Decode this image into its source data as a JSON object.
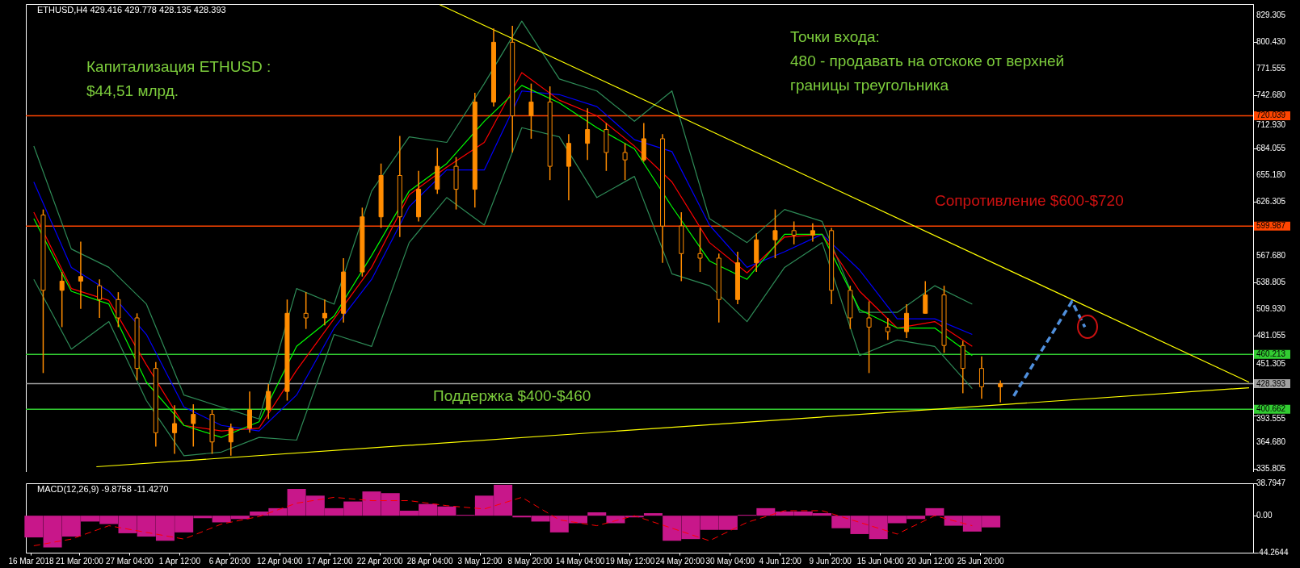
{
  "chart_data": [
    {
      "type": "candlestick",
      "title": "ETHUSD,H4  429.416 429.778 428.135 428.393",
      "color": "#ff8c00",
      "x": [
        "2018-03-18",
        "2018-03-20",
        "2018-03-22",
        "2018-03-24",
        "2018-03-26",
        "2018-03-28",
        "2018-03-30",
        "2018-04-01",
        "2018-04-03",
        "2018-04-05",
        "2018-04-07",
        "2018-04-09",
        "2018-04-11",
        "2018-04-13",
        "2018-04-15",
        "2018-04-17",
        "2018-04-19",
        "2018-04-21",
        "2018-04-23",
        "2018-04-25",
        "2018-04-27",
        "2018-04-29",
        "2018-05-01",
        "2018-05-03",
        "2018-05-05",
        "2018-05-07",
        "2018-05-09",
        "2018-05-11",
        "2018-05-13",
        "2018-05-15",
        "2018-05-17",
        "2018-05-19",
        "2018-05-21",
        "2018-05-23",
        "2018-05-25",
        "2018-05-27",
        "2018-05-29",
        "2018-05-31",
        "2018-06-02",
        "2018-06-04",
        "2018-06-06",
        "2018-06-08",
        "2018-06-10",
        "2018-06-12",
        "2018-06-14",
        "2018-06-16",
        "2018-06-18",
        "2018-06-20",
        "2018-06-22",
        "2018-06-24",
        "2018-06-26",
        "2018-06-28"
      ],
      "ohlc": [
        [
          612,
          618,
          440,
          530
        ],
        [
          530,
          550,
          490,
          540
        ],
        [
          540,
          583,
          510,
          545
        ],
        [
          535,
          542,
          500,
          520
        ],
        [
          520,
          528,
          490,
          500
        ],
        [
          500,
          505,
          432,
          445
        ],
        [
          445,
          452,
          360,
          375
        ],
        [
          375,
          405,
          352,
          385
        ],
        [
          385,
          406,
          360,
          395
        ],
        [
          395,
          400,
          352,
          365
        ],
        [
          365,
          385,
          350,
          380
        ],
        [
          380,
          420,
          375,
          400
        ],
        [
          400,
          428,
          390,
          420
        ],
        [
          420,
          520,
          410,
          505
        ],
        [
          505,
          528,
          488,
          500
        ],
        [
          500,
          520,
          492,
          505
        ],
        [
          505,
          565,
          495,
          550
        ],
        [
          550,
          620,
          545,
          610
        ],
        [
          610,
          668,
          598,
          655
        ],
        [
          655,
          698,
          588,
          610
        ],
        [
          610,
          660,
          605,
          640
        ],
        [
          640,
          685,
          635,
          665
        ],
        [
          665,
          675,
          618,
          640
        ],
        [
          640,
          745,
          620,
          735
        ],
        [
          735,
          815,
          730,
          800
        ],
        [
          800,
          818,
          680,
          720
        ],
        [
          720,
          755,
          695,
          735
        ],
        [
          735,
          752,
          650,
          665
        ],
        [
          665,
          700,
          628,
          690
        ],
        [
          690,
          728,
          672,
          705
        ],
        [
          705,
          712,
          660,
          680
        ],
        [
          680,
          690,
          650,
          672
        ],
        [
          672,
          712,
          670,
          695
        ],
        [
          695,
          700,
          560,
          600
        ],
        [
          600,
          615,
          540,
          570
        ],
        [
          570,
          598,
          550,
          565
        ],
        [
          565,
          570,
          495,
          520
        ],
        [
          520,
          572,
          515,
          560
        ],
        [
          560,
          592,
          550,
          585
        ],
        [
          585,
          618,
          565,
          595
        ],
        [
          595,
          605,
          580,
          590
        ],
        [
          590,
          603,
          583,
          595
        ],
        [
          595,
          598,
          515,
          530
        ],
        [
          530,
          535,
          488,
          500
        ],
        [
          500,
          518,
          440,
          490
        ],
        [
          490,
          500,
          476,
          485
        ],
        [
          485,
          515,
          478,
          505
        ],
        [
          505,
          540,
          505,
          525
        ],
        [
          525,
          535,
          462,
          470
        ],
        [
          470,
          475,
          418,
          445
        ],
        [
          445,
          458,
          412,
          425
        ],
        [
          425,
          432,
          408,
          428.393
        ]
      ],
      "series": [
        {
          "type": "line",
          "color": "#2e8b57",
          "x": [
            "2018-03-17",
            "2018-03-21",
            "2018-03-25",
            "2018-03-29",
            "2018-04-02",
            "2018-04-06",
            "2018-04-10",
            "2018-04-14",
            "2018-04-18",
            "2018-04-22",
            "2018-04-26",
            "2018-04-30",
            "2018-05-04",
            "2018-05-08",
            "2018-05-12",
            "2018-05-16",
            "2018-05-20",
            "2018-05-24",
            "2018-05-28",
            "2018-06-01",
            "2018-06-05",
            "2018-06-09",
            "2018-06-13",
            "2018-06-17",
            "2018-06-21",
            "2018-06-25"
          ],
          "values": [
            687,
            575,
            555,
            515,
            416,
            403,
            390,
            532,
            515,
            638,
            697,
            691,
            755,
            823,
            760,
            747,
            714,
            747,
            608,
            582,
            618,
            605,
            506,
            506,
            535,
            515
          ]
        },
        {
          "type": "line",
          "color": "#2e8b57",
          "x": [
            "2018-03-17",
            "2018-03-21",
            "2018-03-25",
            "2018-03-29",
            "2018-04-02",
            "2018-04-06",
            "2018-04-10",
            "2018-04-14",
            "2018-04-18",
            "2018-04-22",
            "2018-04-26",
            "2018-04-30",
            "2018-05-04",
            "2018-05-08",
            "2018-05-12",
            "2018-05-16",
            "2018-05-20",
            "2018-05-24",
            "2018-05-28",
            "2018-06-01",
            "2018-06-05",
            "2018-06-09",
            "2018-06-13",
            "2018-06-17",
            "2018-06-21",
            "2018-06-25"
          ],
          "values": [
            542,
            466,
            496,
            410,
            350,
            354,
            370,
            367,
            482,
            469,
            582,
            631,
            601,
            707,
            697,
            631,
            654,
            548,
            535,
            496,
            555,
            582,
            459,
            476,
            469,
            423
          ]
        },
        {
          "type": "line",
          "color": "#0000ff",
          "x": [
            "2018-03-17",
            "2018-03-21",
            "2018-03-25",
            "2018-03-29",
            "2018-04-02",
            "2018-04-06",
            "2018-04-10",
            "2018-04-14",
            "2018-04-18",
            "2018-04-22",
            "2018-04-26",
            "2018-04-30",
            "2018-05-04",
            "2018-05-08",
            "2018-05-12",
            "2018-05-16",
            "2018-05-20",
            "2018-05-24",
            "2018-05-28",
            "2018-06-01",
            "2018-06-05",
            "2018-06-09",
            "2018-06-13",
            "2018-06-17",
            "2018-06-21",
            "2018-06-25"
          ],
          "values": [
            648,
            555,
            529,
            482,
            403,
            383,
            377,
            416,
            489,
            542,
            621,
            661,
            661,
            747,
            743,
            730,
            694,
            681,
            601,
            555,
            572,
            591,
            552,
            499,
            499,
            482
          ]
        },
        {
          "type": "line",
          "color": "#ff0000",
          "x": [
            "2018-03-17",
            "2018-03-21",
            "2018-03-25",
            "2018-03-29",
            "2018-04-02",
            "2018-04-06",
            "2018-04-10",
            "2018-04-14",
            "2018-04-18",
            "2018-04-22",
            "2018-04-26",
            "2018-04-30",
            "2018-05-04",
            "2018-05-08",
            "2018-05-12",
            "2018-05-16",
            "2018-05-20",
            "2018-05-24",
            "2018-05-28",
            "2018-06-01",
            "2018-06-05",
            "2018-06-09",
            "2018-06-13",
            "2018-06-17",
            "2018-06-21",
            "2018-06-25"
          ],
          "values": [
            615,
            532,
            519,
            449,
            383,
            377,
            380,
            443,
            499,
            555,
            634,
            664,
            691,
            767,
            737,
            720,
            687,
            648,
            582,
            549,
            588,
            591,
            529,
            489,
            496,
            469
          ]
        },
        {
          "type": "line",
          "color": "#00ff00",
          "x": [
            "2018-03-17",
            "2018-03-21",
            "2018-03-25",
            "2018-03-29",
            "2018-04-02",
            "2018-04-06",
            "2018-04-10",
            "2018-04-14",
            "2018-04-18",
            "2018-04-22",
            "2018-04-26",
            "2018-04-30",
            "2018-05-04",
            "2018-05-08",
            "2018-05-12",
            "2018-05-16",
            "2018-05-20",
            "2018-05-24",
            "2018-05-28",
            "2018-06-01",
            "2018-06-05",
            "2018-06-09",
            "2018-06-13",
            "2018-06-17",
            "2018-06-21",
            "2018-06-25"
          ],
          "values": [
            608,
            529,
            515,
            430,
            383,
            370,
            387,
            469,
            502,
            568,
            638,
            668,
            714,
            753,
            734,
            707,
            684,
            621,
            562,
            542,
            591,
            591,
            509,
            489,
            489,
            459
          ]
        },
        {
          "type": "line",
          "color": "#ffff00",
          "x": [
            "2018-04-29T06:00",
            "2018-07-24T12:00"
          ],
          "values": [
            841,
            430
          ]
        },
        {
          "type": "line",
          "color": "#ffff00",
          "x": [
            "2018-03-23T16:00",
            "2018-07-24T12:00"
          ],
          "values": [
            338,
            424
          ]
        },
        {
          "type": "line",
          "color": "#4f8fdc",
          "line_style": "dashed",
          "x": [
            "2018-06-29T10:00",
            "2018-07-05T15:00",
            "2018-07-07T00:00"
          ],
          "values": [
            415,
            518,
            490
          ]
        }
      ],
      "ref_lines": [
        {
          "axis": "y",
          "value": 720.039,
          "label": "720.039",
          "color": "#ff4500"
        },
        {
          "axis": "y",
          "value": 599.987,
          "label": "599.987",
          "color": "#ff4500"
        },
        {
          "axis": "y",
          "value": 460.213,
          "label": "460.213",
          "color": "#32cd32"
        },
        {
          "axis": "y",
          "value": 428.393,
          "label": "428.393",
          "color": "#a0a0a0"
        },
        {
          "axis": "y",
          "value": 400.662,
          "label": "400.662",
          "color": "#32cd32"
        }
      ],
      "annotations": [
        "Капитализация ETHUSD :\n$44,51 млрд.",
        "Точки входа:\n480 - продавать на отскоке от верхней\nграницы треугольника",
        "Сопротивление $600-$720",
        "Поддержка $400-$460"
      ],
      "xlim": [
        "2018-03-16T14:00",
        "2018-07-24T12:00"
      ],
      "ylim": [
        332.3,
        841.6
      ],
      "yticks": [
        {
          "value": 829.305,
          "label": "829.305"
        },
        {
          "value": 800.43,
          "label": "800.430"
        },
        {
          "value": 771.555,
          "label": "771.555"
        },
        {
          "value": 742.68,
          "label": "742.680"
        },
        {
          "value": 712.93,
          "label": "712.930"
        },
        {
          "value": 684.055,
          "label": "684.055"
        },
        {
          "value": 655.18,
          "label": "655.180"
        },
        {
          "value": 626.305,
          "label": "626.305"
        },
        {
          "value": 567.68,
          "label": "567.680"
        },
        {
          "value": 538.805,
          "label": "538.805"
        },
        {
          "value": 509.93,
          "label": "509.930"
        },
        {
          "value": 481.055,
          "label": "481.055"
        },
        {
          "value": 451.305,
          "label": "451.305"
        },
        {
          "value": 393.555,
          "label": "393.555"
        },
        {
          "value": 364.68,
          "label": "364.680"
        },
        {
          "value": 335.805,
          "label": "335.805"
        }
      ],
      "xticks": [
        {
          "value": "2018-03-21T20:00",
          "label": null
        },
        {
          "value": "2018-03-27T04:00",
          "label": null
        },
        {
          "value": "2018-04-01T12:00",
          "label": null
        },
        {
          "value": "2018-04-06T20:00",
          "label": null
        },
        {
          "value": "2018-04-12T04:00",
          "label": null
        },
        {
          "value": "2018-04-17T12:00",
          "label": null
        },
        {
          "value": "2018-04-22T20:00",
          "label": null
        },
        {
          "value": "2018-04-28T04:00",
          "label": null
        },
        {
          "value": "2018-05-03T12:00",
          "label": null
        },
        {
          "value": "2018-05-08T20:00",
          "label": null
        },
        {
          "value": "2018-05-14T04:00",
          "label": null
        },
        {
          "value": "2018-05-19T12:00",
          "label": null
        },
        {
          "value": "2018-05-24T20:00",
          "label": null
        },
        {
          "value": "2018-05-30T04:00",
          "label": null
        },
        {
          "value": "2018-06-04T12:00",
          "label": null
        },
        {
          "value": "2018-06-09T20:00",
          "label": null
        },
        {
          "value": "2018-06-15T04:00",
          "label": null
        },
        {
          "value": "2018-06-20T12:00",
          "label": null
        },
        {
          "value": "2018-06-25T20:00",
          "label": null
        }
      ],
      "tick_labels": "y"
    },
    {
      "type": "bar",
      "title": "MACD(12,26,9) -9.8758 -11.4270",
      "color": "#c8178a",
      "x": [
        "2018-03-17",
        "2018-03-19",
        "2018-03-21",
        "2018-03-23",
        "2018-03-25",
        "2018-03-27",
        "2018-03-29",
        "2018-03-31",
        "2018-04-02",
        "2018-04-04",
        "2018-04-06",
        "2018-04-08",
        "2018-04-10",
        "2018-04-12",
        "2018-04-14",
        "2018-04-16",
        "2018-04-18",
        "2018-04-20",
        "2018-04-22",
        "2018-04-24",
        "2018-04-26",
        "2018-04-28",
        "2018-04-30",
        "2018-05-02",
        "2018-05-04",
        "2018-05-06",
        "2018-05-08",
        "2018-05-10",
        "2018-05-12",
        "2018-05-14",
        "2018-05-16",
        "2018-05-18",
        "2018-05-20",
        "2018-05-22",
        "2018-05-24",
        "2018-05-26",
        "2018-05-28",
        "2018-05-30",
        "2018-06-01",
        "2018-06-03",
        "2018-06-05",
        "2018-06-07",
        "2018-06-09",
        "2018-06-11",
        "2018-06-13",
        "2018-06-15",
        "2018-06-17",
        "2018-06-19",
        "2018-06-21",
        "2018-06-23",
        "2018-06-25",
        "2018-06-27"
      ],
      "values": [
        -26,
        -38,
        -25,
        -7,
        -10,
        -21,
        -25,
        -30,
        -20,
        -3,
        -8,
        -4,
        5,
        9,
        32,
        24,
        9,
        17,
        29,
        27,
        6,
        14,
        11,
        1,
        24,
        37,
        -2,
        -7,
        -20,
        -9,
        4,
        -9,
        -2,
        3,
        -30,
        -28,
        -17,
        -17,
        1,
        9,
        5,
        5,
        3,
        -15,
        -22,
        -28,
        -9,
        -4,
        9,
        -12,
        -19,
        -14
      ],
      "series": [
        {
          "type": "line",
          "color": "#ff0000",
          "line_style": "dashed",
          "x": [
            "2018-03-17",
            "2018-03-21",
            "2018-03-25",
            "2018-03-29",
            "2018-04-02",
            "2018-04-06",
            "2018-04-10",
            "2018-04-14",
            "2018-04-18",
            "2018-04-22",
            "2018-04-26",
            "2018-04-30",
            "2018-05-04",
            "2018-05-08",
            "2018-05-12",
            "2018-05-16",
            "2018-05-20",
            "2018-05-24",
            "2018-05-28",
            "2018-06-01",
            "2018-06-05",
            "2018-06-09",
            "2018-06-13",
            "2018-06-17",
            "2018-06-21",
            "2018-06-25"
          ],
          "values": [
            -36,
            -28,
            -12,
            -20,
            -28,
            -10,
            -1,
            15,
            22,
            18,
            18,
            12,
            8,
            22,
            -5,
            -12,
            0,
            -15,
            -30,
            -8,
            6,
            6,
            -8,
            -22,
            0,
            -12
          ]
        }
      ],
      "xlim": [
        "2018-03-16T14:00",
        "2018-07-24T12:00"
      ],
      "ylim": [
        -44.2644,
        38.7947
      ],
      "yticks": [
        {
          "value": 38.7947,
          "label": "38.7947"
        },
        {
          "value": 0,
          "label": "0.00"
        },
        {
          "value": -44.2644,
          "label": "-44.2644"
        }
      ],
      "xticks": [
        {
          "value": "2018-03-16T16:00",
          "label": "16 Mar 2018"
        },
        {
          "value": "2018-03-21T20:00",
          "label": "21 Mar 20:00"
        },
        {
          "value": "2018-03-27T04:00",
          "label": "27 Mar 04:00"
        },
        {
          "value": "2018-04-01T12:00",
          "label": "1 Apr 12:00"
        },
        {
          "value": "2018-04-06T20:00",
          "label": "6 Apr 20:00"
        },
        {
          "value": "2018-04-12T04:00",
          "label": "12 Apr 04:00"
        },
        {
          "value": "2018-04-17T12:00",
          "label": "17 Apr 12:00"
        },
        {
          "value": "2018-04-22T20:00",
          "label": "22 Apr 20:00"
        },
        {
          "value": "2018-04-28T04:00",
          "label": "28 Apr 04:00"
        },
        {
          "value": "2018-05-03T12:00",
          "label": "3 May 12:00"
        },
        {
          "value": "2018-05-08T20:00",
          "label": "8 May 20:00"
        },
        {
          "value": "2018-05-14T04:00",
          "label": "14 May 04:00"
        },
        {
          "value": "2018-05-19T12:00",
          "label": "19 May 12:00"
        },
        {
          "value": "2018-05-24T20:00",
          "label": "24 May 20:00"
        },
        {
          "value": "2018-05-30T04:00",
          "label": "30 May 04:00"
        },
        {
          "value": "2018-06-04T12:00",
          "label": "4 Jun 12:00"
        },
        {
          "value": "2018-06-09T20:00",
          "label": "9 Jun 20:00"
        },
        {
          "value": "2018-06-15T04:00",
          "label": "15 Jun 04:00"
        },
        {
          "value": "2018-06-20T12:00",
          "label": "20 Jun 12:00"
        },
        {
          "value": "2018-06-25T20:00",
          "label": "25 Jun 20:00"
        }
      ]
    }
  ]
}
